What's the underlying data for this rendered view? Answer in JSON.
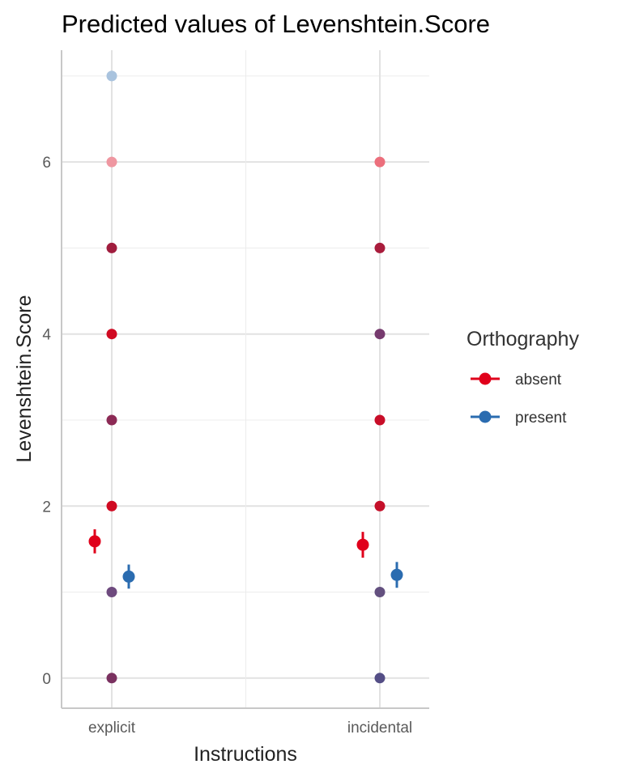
{
  "chart_data": {
    "type": "scatter",
    "title": "Predicted values of Levenshtein.Score",
    "xlabel": "Instructions",
    "ylabel": "Levenshtein.Score",
    "categories": [
      "explicit",
      "incidental"
    ],
    "ylim": [
      -0.35,
      7.3
    ],
    "yticks": [
      0,
      2,
      4,
      6
    ],
    "grid": true,
    "legend": {
      "title": "Orthography",
      "position": "right",
      "entries": [
        {
          "label": "absent",
          "color": "#e0001b"
        },
        {
          "label": "present",
          "color": "#2b6cb0"
        }
      ]
    },
    "raw_points": [
      {
        "category": "explicit",
        "y": 7,
        "color": "#a9c3de"
      },
      {
        "category": "explicit",
        "y": 6,
        "color": "#ef97a1"
      },
      {
        "category": "explicit",
        "y": 5,
        "color": "#a01d3e"
      },
      {
        "category": "explicit",
        "y": 4,
        "color": "#d00a22"
      },
      {
        "category": "explicit",
        "y": 3,
        "color": "#8c2a55"
      },
      {
        "category": "explicit",
        "y": 2,
        "color": "#d00a22"
      },
      {
        "category": "explicit",
        "y": 1,
        "color": "#6e4a7e"
      },
      {
        "category": "explicit",
        "y": 0,
        "color": "#7a3160"
      },
      {
        "category": "incidental",
        "y": 6,
        "color": "#ec6f7c"
      },
      {
        "category": "incidental",
        "y": 5,
        "color": "#a91c3c"
      },
      {
        "category": "incidental",
        "y": 4,
        "color": "#763a6e"
      },
      {
        "category": "incidental",
        "y": 3,
        "color": "#c80d28"
      },
      {
        "category": "incidental",
        "y": 2,
        "color": "#c5102a"
      },
      {
        "category": "incidental",
        "y": 1,
        "color": "#63507f"
      },
      {
        "category": "incidental",
        "y": 0,
        "color": "#544e86"
      }
    ],
    "series": [
      {
        "name": "absent",
        "color": "#e0001b",
        "values": [
          1.59,
          1.55
        ],
        "lower": [
          1.45,
          1.4
        ],
        "upper": [
          1.73,
          1.7
        ]
      },
      {
        "name": "present",
        "color": "#2b6cb0",
        "values": [
          1.18,
          1.2
        ],
        "lower": [
          1.04,
          1.05
        ],
        "upper": [
          1.32,
          1.35
        ]
      }
    ]
  }
}
